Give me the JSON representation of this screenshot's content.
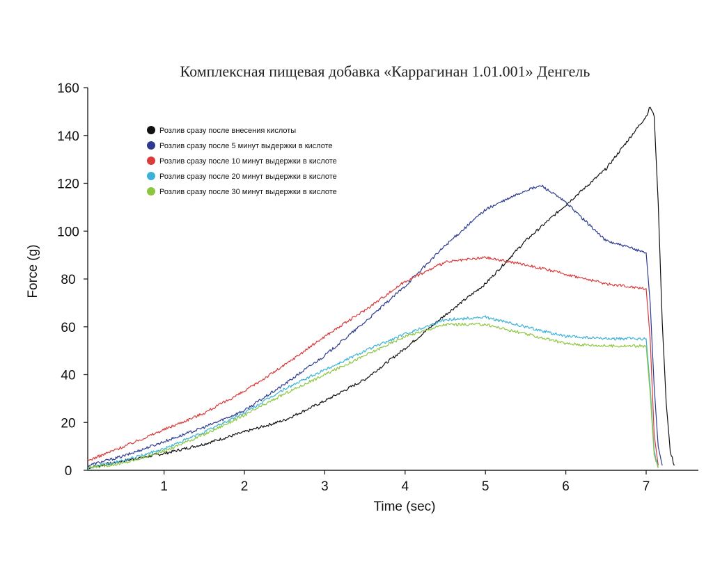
{
  "chart_data": {
    "type": "line",
    "title": "Комплексная пищевая добавка «Каррагинан 1.01.001» Денгель",
    "xlabel": "Time (sec)",
    "ylabel": "Force (g)",
    "xlim": [
      0.05,
      7.65
    ],
    "ylim": [
      0,
      160
    ],
    "x_ticks": [
      1,
      2,
      3,
      4,
      5,
      6,
      7
    ],
    "y_ticks": [
      0,
      20,
      40,
      60,
      80,
      100,
      120,
      140,
      160
    ],
    "grid": false,
    "legend_position": "top-left",
    "series": [
      {
        "name": "Розлив сразу после внесения кислоты",
        "color": "#111111",
        "x": [
          0.05,
          0.5,
          1.0,
          1.5,
          2.0,
          2.5,
          3.0,
          3.5,
          4.0,
          4.5,
          5.0,
          5.5,
          6.0,
          6.5,
          7.0,
          7.05,
          7.1,
          7.15,
          7.2,
          7.25,
          7.3,
          7.35
        ],
        "y": [
          1,
          4,
          7,
          11,
          16,
          21,
          29,
          38,
          51,
          65,
          78,
          96,
          111,
          126,
          148,
          152,
          148,
          112,
          62,
          28,
          8,
          2
        ]
      },
      {
        "name": "Розлив сразу после 5 минут выдержки в кислоте",
        "color": "#2e3a8f",
        "x": [
          0.05,
          0.5,
          1.0,
          1.5,
          2.0,
          2.5,
          3.0,
          3.5,
          4.0,
          4.5,
          5.0,
          5.5,
          5.7,
          6.0,
          6.5,
          7.0,
          7.05,
          7.1,
          7.15,
          7.2
        ],
        "y": [
          2,
          6,
          12,
          18,
          25,
          36,
          48,
          62,
          77,
          94,
          109,
          117,
          119,
          112,
          96,
          91,
          70,
          35,
          10,
          2
        ]
      },
      {
        "name": "Розлив сразу после 10 минут выдержки в кислоте",
        "color": "#d93a3a",
        "x": [
          0.05,
          0.5,
          1.0,
          1.5,
          2.0,
          2.5,
          3.0,
          3.5,
          4.0,
          4.5,
          5.0,
          5.5,
          6.0,
          6.5,
          7.0,
          7.05,
          7.1,
          7.15
        ],
        "y": [
          4,
          10,
          17,
          24,
          33,
          44,
          56,
          67,
          79,
          87,
          89,
          86,
          82,
          78,
          76,
          55,
          15,
          2
        ]
      },
      {
        "name": "Розлив сразу после 20 минут выдержки в кислоте",
        "color": "#3bb2d8",
        "x": [
          0.05,
          0.5,
          1.0,
          1.5,
          2.0,
          2.5,
          3.0,
          3.5,
          4.0,
          4.5,
          5.0,
          5.5,
          6.0,
          6.5,
          7.0,
          7.05,
          7.1,
          7.15
        ],
        "y": [
          1,
          4,
          9,
          16,
          24,
          34,
          42,
          50,
          57,
          63,
          64,
          60,
          56,
          55,
          55,
          35,
          8,
          1
        ]
      },
      {
        "name": "Розлив сразу после 30 минут выдержки в кислоте",
        "color": "#8cc63f",
        "x": [
          0.05,
          0.5,
          1.0,
          1.5,
          2.0,
          2.5,
          3.0,
          3.5,
          4.0,
          4.5,
          5.0,
          5.5,
          6.0,
          6.5,
          7.0,
          7.05,
          7.1,
          7.15
        ],
        "y": [
          1,
          3,
          8,
          15,
          23,
          32,
          40,
          48,
          56,
          61,
          61,
          57,
          53,
          52,
          52,
          32,
          6,
          1
        ]
      }
    ]
  }
}
